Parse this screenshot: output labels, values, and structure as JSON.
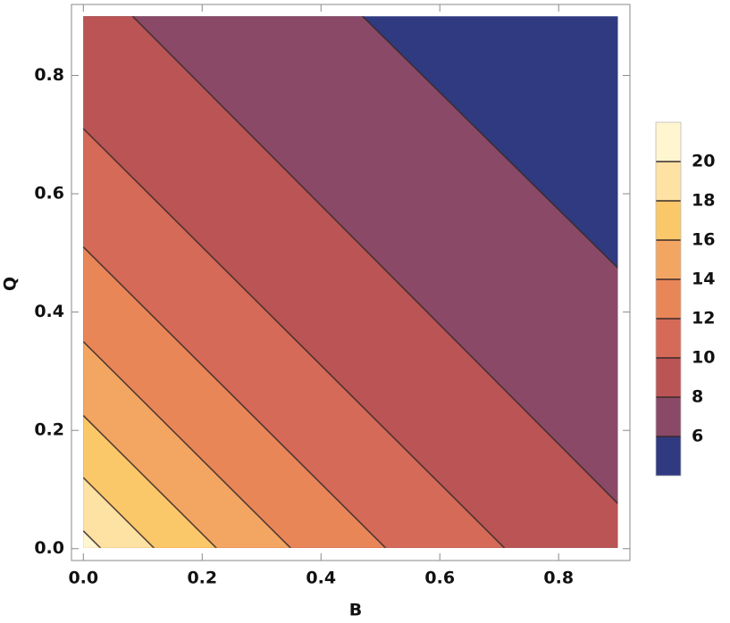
{
  "chart_data": {
    "type": "contour",
    "x_label": "B",
    "y_label": "Q",
    "xlim": [
      -0.02,
      0.92
    ],
    "ylim": [
      -0.02,
      0.92
    ],
    "domain_x": [
      0,
      0.9
    ],
    "domain_y": [
      0,
      0.9
    ],
    "xticks": [
      {
        "value": 0,
        "label": "0.0"
      },
      0.2,
      0.4,
      0.6,
      0.8
    ],
    "yticks": [
      {
        "value": 0,
        "label": "0.0"
      },
      0.2,
      0.4,
      0.6,
      0.8
    ],
    "contours": [
      {
        "level": 20,
        "x": [
          0,
          0.03
        ],
        "y": [
          0.03,
          0
        ]
      },
      {
        "level": 18,
        "x": [
          0,
          0.12
        ],
        "y": [
          0.12,
          0
        ]
      },
      {
        "level": 16,
        "x": [
          0,
          0.225
        ],
        "y": [
          0.225,
          0
        ]
      },
      {
        "level": 14,
        "x": [
          0,
          0.35
        ],
        "y": [
          0.35,
          0
        ]
      },
      {
        "level": 12,
        "x": [
          0,
          0.51
        ],
        "y": [
          0.51,
          0
        ]
      },
      {
        "level": 10,
        "x": [
          0,
          0.71
        ],
        "y": [
          0.71,
          0
        ]
      },
      {
        "level": 8,
        "x": [
          0.083,
          0.9
        ],
        "y": [
          0.9,
          0.076
        ]
      },
      {
        "level": 6,
        "x": [
          0.47,
          0.9
        ],
        "y": [
          0.9,
          0.474
        ]
      }
    ],
    "colorbar": {
      "lim": [
        4,
        22
      ],
      "ticks": [
        6,
        8,
        10,
        12,
        14,
        16,
        18,
        20
      ],
      "colors": [
        "#2f3a80",
        "#8a4a67",
        "#bb5454",
        "#d46a57",
        "#e98658",
        "#f3a662",
        "#fbc869",
        "#fde2a3",
        "#fff6d0"
      ]
    }
  }
}
